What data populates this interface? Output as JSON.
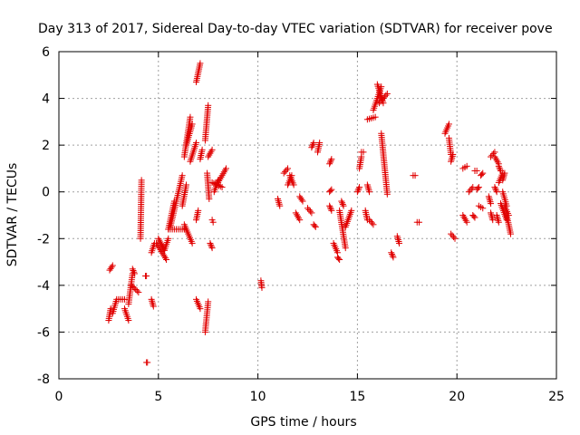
{
  "chart_data": {
    "type": "scatter",
    "title": "Day 313 of 2017, Sidereal Day-to-day VTEC variation (SDTVAR) for receiver pove",
    "xlabel": "GPS time / hours",
    "ylabel": "SDTVAR / TECUs",
    "xlim": [
      0,
      25
    ],
    "ylim": [
      -8,
      6
    ],
    "xticks": [
      0,
      5,
      10,
      15,
      20,
      25
    ],
    "yticks": [
      -8,
      -6,
      -4,
      -2,
      0,
      2,
      4,
      6
    ],
    "xtick_labels": [
      "0",
      "5",
      "10",
      "15",
      "20",
      "25"
    ],
    "ytick_labels": [
      "-8",
      "-6",
      "-4",
      "-2",
      "0",
      "2",
      "4",
      "6"
    ],
    "grid": true,
    "marker": "+",
    "series_color": "#e00000",
    "segments": [
      [
        2.5,
        -5.5,
        2.6,
        -5.0
      ],
      [
        2.55,
        -3.35,
        2.7,
        -3.15
      ],
      [
        2.7,
        -5.2,
        2.9,
        -4.6
      ],
      [
        3.0,
        -4.6,
        3.3,
        -4.6
      ],
      [
        3.3,
        -5.0,
        3.5,
        -5.5
      ],
      [
        3.5,
        -4.8,
        3.7,
        -3.5
      ],
      [
        3.7,
        -3.3,
        3.8,
        -3.5
      ],
      [
        3.65,
        -4.0,
        4.0,
        -4.3
      ],
      [
        4.1,
        -2.0,
        4.15,
        0.5
      ],
      [
        4.35,
        -3.6,
        4.4,
        -3.6
      ],
      [
        4.4,
        -7.3,
        4.45,
        -7.3
      ],
      [
        4.65,
        -4.6,
        4.75,
        -4.9
      ],
      [
        4.65,
        -2.6,
        4.8,
        -2.2
      ],
      [
        4.9,
        -2.2,
        5.4,
        -2.9
      ],
      [
        5.0,
        -2.0,
        5.3,
        -2.5
      ],
      [
        5.3,
        -2.5,
        5.5,
        -2.0
      ],
      [
        5.5,
        -1.6,
        5.8,
        -0.4
      ],
      [
        5.6,
        -1.5,
        6.2,
        0.7
      ],
      [
        5.5,
        -1.6,
        6.3,
        -1.6
      ],
      [
        6.2,
        -0.6,
        6.4,
        0.3
      ],
      [
        6.3,
        -1.4,
        6.7,
        -2.2
      ],
      [
        6.3,
        1.5,
        6.6,
        3.2
      ],
      [
        6.4,
        2.0,
        6.7,
        2.9
      ],
      [
        6.6,
        1.3,
        6.9,
        2.1
      ],
      [
        6.9,
        4.7,
        7.1,
        5.5
      ],
      [
        6.9,
        -1.2,
        7.0,
        -0.8
      ],
      [
        6.9,
        -4.6,
        7.1,
        -5.0
      ],
      [
        7.1,
        1.4,
        7.2,
        1.8
      ],
      [
        7.35,
        2.2,
        7.5,
        3.7
      ],
      [
        7.35,
        -6.0,
        7.5,
        -4.7
      ],
      [
        7.45,
        0.8,
        7.55,
        -0.3
      ],
      [
        7.5,
        1.5,
        7.7,
        1.8
      ],
      [
        7.6,
        -2.2,
        7.7,
        -2.4
      ],
      [
        7.7,
        -1.2,
        7.75,
        -1.3
      ],
      [
        7.8,
        0.0,
        8.0,
        0.5
      ],
      [
        7.7,
        0.4,
        8.2,
        0.2
      ],
      [
        8.0,
        0.4,
        8.4,
        1.0
      ],
      [
        10.15,
        -3.8,
        10.2,
        -4.1
      ],
      [
        11.0,
        -0.3,
        11.1,
        -0.6
      ],
      [
        11.3,
        0.8,
        11.5,
        1.0
      ],
      [
        11.5,
        0.3,
        11.7,
        0.7
      ],
      [
        11.6,
        0.7,
        11.8,
        0.3
      ],
      [
        11.9,
        -0.9,
        12.1,
        -1.2
      ],
      [
        12.1,
        -0.2,
        12.25,
        -0.4
      ],
      [
        12.5,
        -0.7,
        12.7,
        -0.9
      ],
      [
        12.7,
        1.9,
        12.8,
        2.1
      ],
      [
        12.8,
        -1.4,
        12.9,
        -1.5
      ],
      [
        13.0,
        1.7,
        13.1,
        2.1
      ],
      [
        13.6,
        1.2,
        13.7,
        1.4
      ],
      [
        13.6,
        0.0,
        13.7,
        0.1
      ],
      [
        13.6,
        -0.6,
        13.7,
        -0.8
      ],
      [
        13.8,
        -2.2,
        14.0,
        -2.6
      ],
      [
        14.0,
        -2.8,
        14.1,
        -2.9
      ],
      [
        14.1,
        -0.8,
        14.4,
        -2.4
      ],
      [
        14.2,
        -0.4,
        14.3,
        -0.6
      ],
      [
        14.4,
        -1.5,
        14.7,
        -0.8
      ],
      [
        15.0,
        0.0,
        15.1,
        0.2
      ],
      [
        15.1,
        1.0,
        15.2,
        1.5
      ],
      [
        15.2,
        1.7,
        15.3,
        1.7
      ],
      [
        15.4,
        -0.8,
        15.5,
        -1.2
      ],
      [
        15.5,
        0.3,
        15.6,
        0.0
      ],
      [
        15.6,
        -1.2,
        15.8,
        -1.4
      ],
      [
        15.5,
        3.1,
        15.9,
        3.2
      ],
      [
        15.8,
        3.5,
        16.2,
        4.5
      ],
      [
        16.0,
        4.6,
        16.3,
        3.8
      ],
      [
        16.1,
        3.8,
        16.5,
        4.2
      ],
      [
        16.2,
        2.5,
        16.5,
        -0.1
      ],
      [
        16.7,
        -2.6,
        16.8,
        -2.8
      ],
      [
        17.0,
        -1.9,
        17.1,
        -2.2
      ],
      [
        17.8,
        0.7,
        17.9,
        0.7
      ],
      [
        18.0,
        -1.3,
        18.1,
        -1.3
      ],
      [
        19.4,
        2.5,
        19.6,
        2.9
      ],
      [
        19.6,
        2.3,
        19.7,
        1.6
      ],
      [
        19.7,
        1.3,
        19.8,
        1.6
      ],
      [
        19.7,
        -1.8,
        19.9,
        -2.0
      ],
      [
        20.3,
        1.0,
        20.5,
        1.1
      ],
      [
        20.3,
        -1.0,
        20.5,
        -1.3
      ],
      [
        20.6,
        0.0,
        20.8,
        0.2
      ],
      [
        20.8,
        -1.0,
        20.9,
        -1.1
      ],
      [
        20.9,
        0.9,
        21.0,
        0.9
      ],
      [
        21.0,
        0.1,
        21.1,
        0.2
      ],
      [
        21.1,
        -0.6,
        21.3,
        -0.7
      ],
      [
        21.2,
        0.7,
        21.3,
        0.8
      ],
      [
        21.6,
        -0.2,
        21.7,
        -0.5
      ],
      [
        21.7,
        -0.9,
        21.8,
        -1.2
      ],
      [
        21.7,
        1.5,
        21.9,
        1.7
      ],
      [
        21.9,
        1.5,
        22.1,
        1.2
      ],
      [
        21.9,
        0.2,
        22.0,
        0.0
      ],
      [
        22.0,
        -1.0,
        22.1,
        -1.3
      ],
      [
        22.1,
        1.1,
        22.2,
        0.9
      ],
      [
        22.1,
        0.4,
        22.3,
        0.8
      ],
      [
        22.3,
        0.5,
        22.4,
        0.8
      ],
      [
        22.2,
        -0.5,
        22.5,
        -1.2
      ],
      [
        22.3,
        0.0,
        22.5,
        -0.6
      ],
      [
        22.4,
        -0.6,
        22.6,
        -1.0
      ],
      [
        22.5,
        -1.0,
        22.7,
        -1.8
      ]
    ]
  }
}
